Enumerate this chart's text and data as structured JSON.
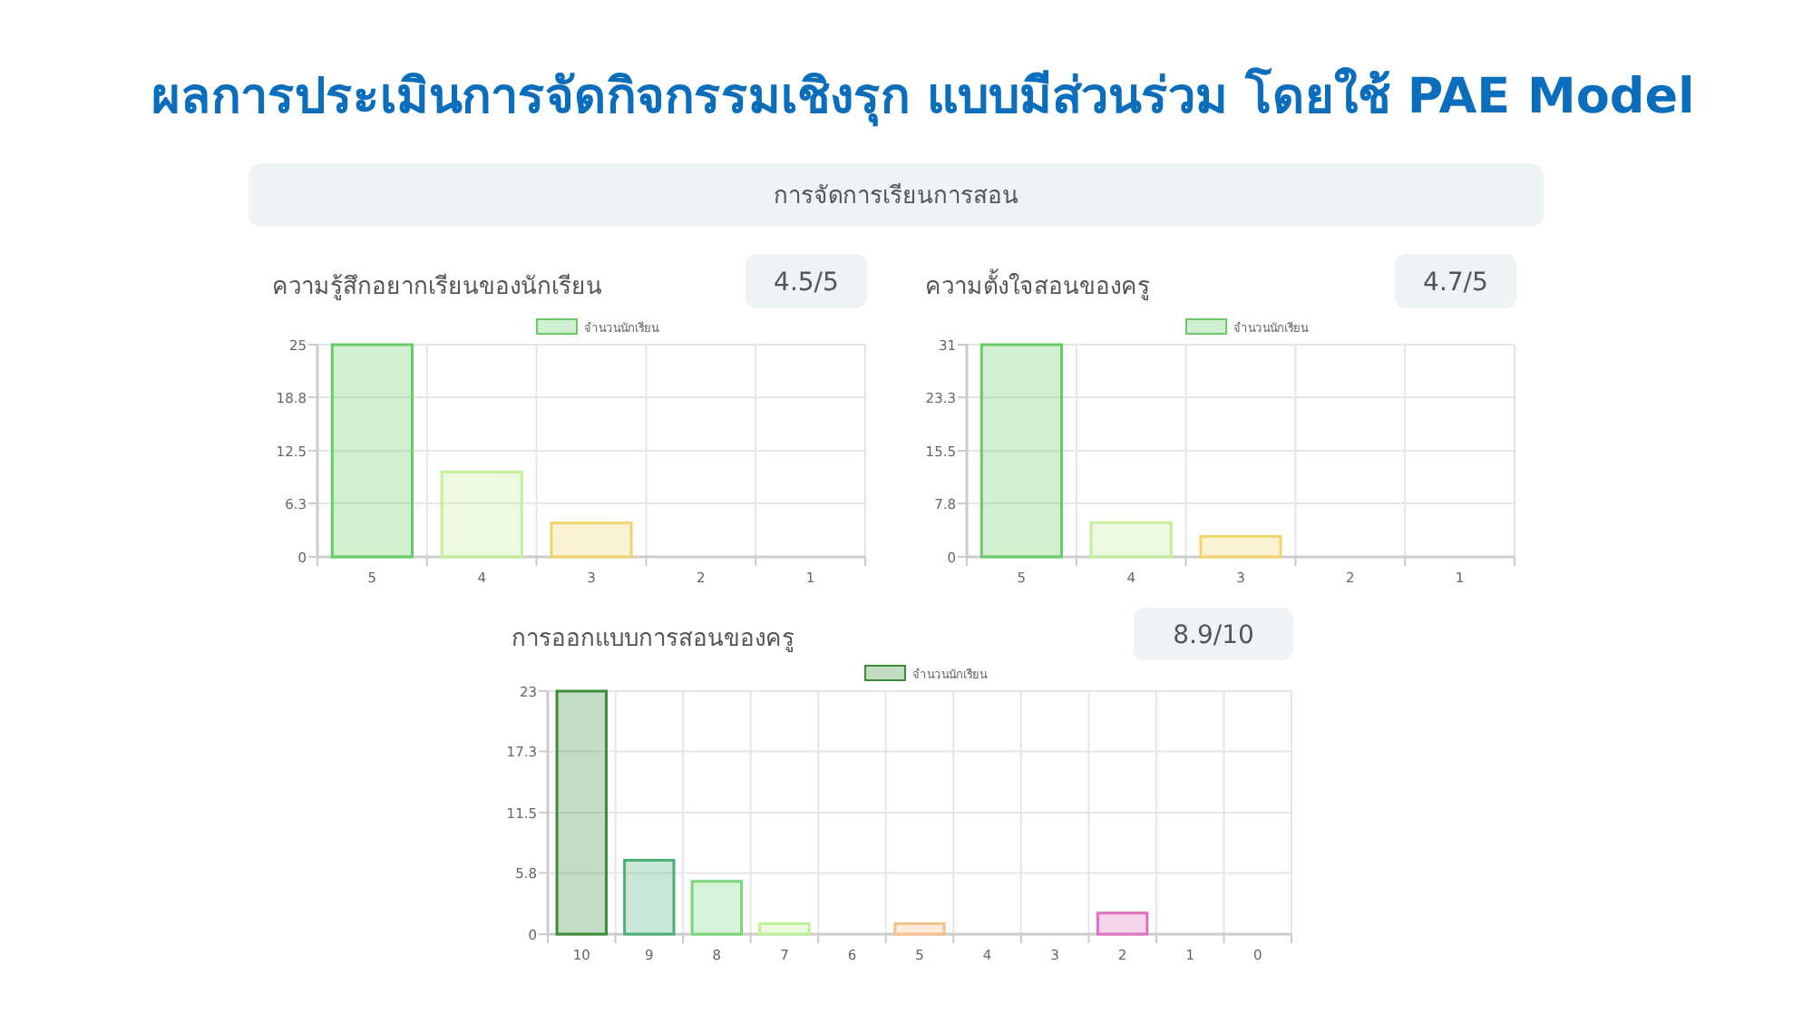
{
  "chart_data": [
    {
      "type": "other",
      "title": "ผลการประเมินการจัดกิจกรรมเชิงรุก แบบมีส่วนร่วม โดยใช้ PAE Model",
      "subtitle": "การจัดการเรียนการสอน"
    },
    {
      "type": "bar",
      "title": "ความรู้สึกอยากเรียนของนักเรียน",
      "annotations": [
        "4.5/5"
      ],
      "categories": [
        "5",
        "4",
        "3",
        "2",
        "1"
      ],
      "series": [
        {
          "name": "จำนวนนักเรียน",
          "colors": [
            "#66cc66",
            "#c4ee9a",
            "#f2d46c",
            "#f0a070",
            "#e070c0"
          ],
          "values": [
            25,
            10,
            4,
            0,
            0
          ]
        }
      ],
      "ylim": [
        0,
        25
      ],
      "yticks": [
        0,
        6.3,
        12.5,
        18.8,
        25
      ],
      "grid": true,
      "legend": "top"
    },
    {
      "type": "bar",
      "title": "ความตั้งใจสอนของครู",
      "annotations": [
        "4.7/5"
      ],
      "categories": [
        "5",
        "4",
        "3",
        "2",
        "1"
      ],
      "series": [
        {
          "name": "จำนวนนักเรียน",
          "colors": [
            "#66cc66",
            "#c4ee9a",
            "#f2d46c",
            "#f0a070",
            "#e070c0"
          ],
          "values": [
            31,
            5,
            3,
            0,
            0
          ]
        }
      ],
      "ylim": [
        0,
        31
      ],
      "yticks": [
        0,
        7.8,
        15.5,
        23.3,
        31
      ],
      "grid": true,
      "legend": "top"
    },
    {
      "type": "bar",
      "title": "การออกแบบการสอนของครู",
      "annotations": [
        "8.9/10"
      ],
      "categories": [
        "10",
        "9",
        "8",
        "7",
        "6",
        "5",
        "4",
        "3",
        "2",
        "1",
        "0"
      ],
      "series": [
        {
          "name": "จำนวนนักเรียน",
          "colors": [
            "#3c8c3c",
            "#4caf7a",
            "#7ad67a",
            "#bff09a",
            "#e8e070",
            "#f5c08a",
            "#f0a070",
            "#f08080",
            "#e070c0",
            "#c070e0",
            "#8080e0"
          ],
          "values": [
            23,
            7,
            5,
            1,
            0,
            1,
            0,
            0,
            2,
            0,
            0
          ]
        }
      ],
      "ylim": [
        0,
        23
      ],
      "yticks": [
        0,
        5.8,
        11.5,
        17.3,
        23
      ],
      "grid": true,
      "legend": "top"
    }
  ]
}
